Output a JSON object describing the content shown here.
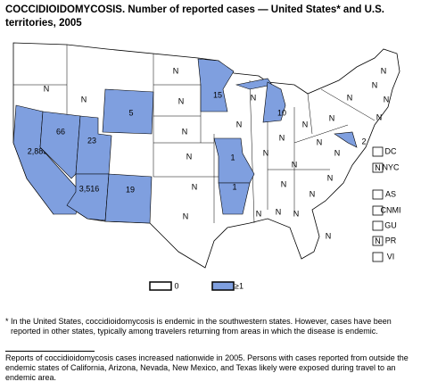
{
  "header": {
    "title": "COCCIDIOIDOMYCOSIS. Number of reported cases — United States* and U.S. territories, 2005"
  },
  "map": {
    "reported_color": "#7f9fdf",
    "states": [
      {
        "label": "2,885",
        "reported": true
      },
      {
        "label": "66",
        "reported": true
      },
      {
        "label": "23",
        "reported": true
      },
      {
        "label": "3,516",
        "reported": true
      },
      {
        "label": "19",
        "reported": true
      },
      {
        "label": "5",
        "reported": true
      },
      {
        "label": "15",
        "reported": true
      },
      {
        "label": "10",
        "reported": true
      },
      {
        "label": "1",
        "reported": true
      },
      {
        "label": "1",
        "reported": true
      },
      {
        "label": "2",
        "reported": true
      },
      {
        "label": "N"
      },
      {
        "label": "N"
      },
      {
        "label": "N"
      },
      {
        "label": "N"
      },
      {
        "label": "N"
      },
      {
        "label": "N"
      },
      {
        "label": "N"
      },
      {
        "label": "N"
      },
      {
        "label": "N"
      },
      {
        "label": "N"
      },
      {
        "label": "N"
      },
      {
        "label": "N"
      },
      {
        "label": "N"
      },
      {
        "label": "N"
      },
      {
        "label": "N"
      },
      {
        "label": "N"
      },
      {
        "label": "N"
      },
      {
        "label": "N"
      },
      {
        "label": "N"
      },
      {
        "label": "N"
      },
      {
        "label": "N"
      },
      {
        "label": "N"
      },
      {
        "label": "N"
      },
      {
        "label": "N"
      },
      {
        "label": "N"
      },
      {
        "label": "N"
      },
      {
        "label": "N"
      },
      {
        "label": "N"
      },
      {
        "label": "N"
      }
    ],
    "territories": [
      {
        "label": "DC"
      },
      {
        "label": "NYC",
        "value": "N"
      },
      {
        "label": "AS"
      },
      {
        "label": "CNMI"
      },
      {
        "label": "GU"
      },
      {
        "label": "PR",
        "value": "N"
      },
      {
        "label": "VI"
      }
    ],
    "legend": [
      {
        "label": "0",
        "reported": false
      },
      {
        "label": "≥1",
        "reported": true
      }
    ]
  },
  "footnote": "* In the United States, coccidioidomycosis is endemic in the southwestern states. However, cases have been reported in other states, typically among travelers returning from areas in which the disease is endemic.",
  "note": "Reports of coccidioidomycosis cases increased nationwide in 2005. Persons with cases reported from outside the endemic states of California, Arizona, Nevada, New Mexico, and Texas likely were exposed during travel to an endemic area."
}
